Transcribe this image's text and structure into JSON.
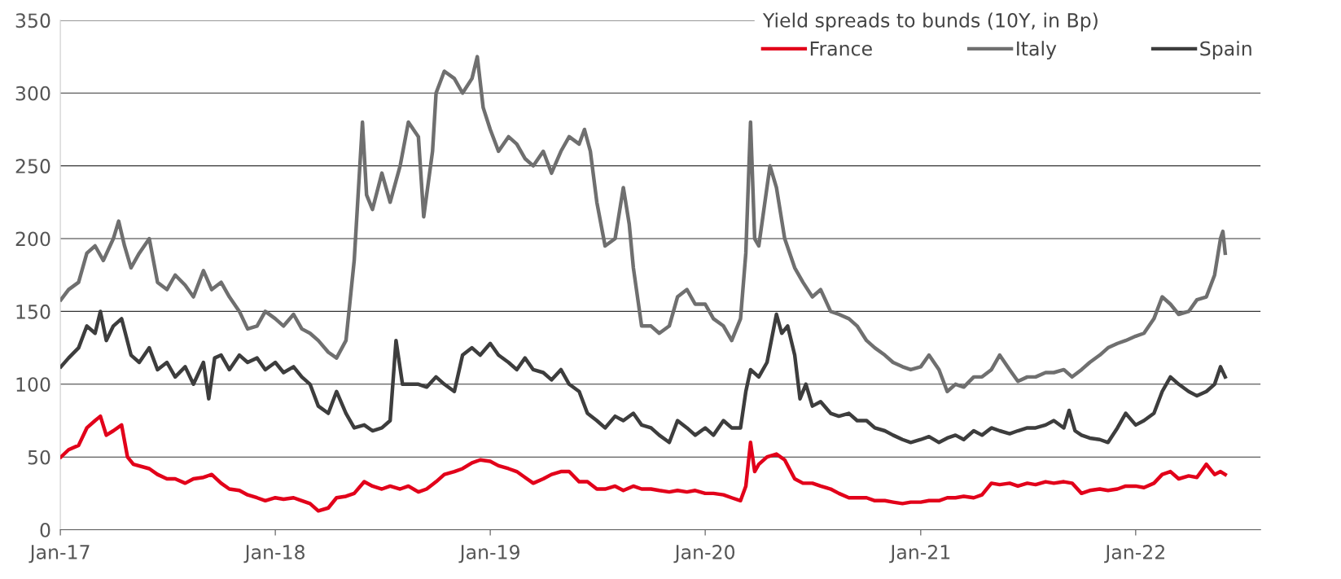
{
  "chart_data": {
    "type": "line",
    "legend_title": "Yield spreads to bunds (10Y, in Bp)",
    "legend": "top right",
    "grid": "y",
    "marker": "none",
    "line_style": "solid",
    "xlim": [
      "2017-01-01",
      "2022-08-01"
    ],
    "xticks": [
      {
        "value": "2017-01-01",
        "label": "Jan-17"
      },
      {
        "value": "2018-01-01",
        "label": "Jan-18"
      },
      {
        "value": "2019-01-01",
        "label": "Jan-19"
      },
      {
        "value": "2020-01-01",
        "label": "Jan-20"
      },
      {
        "value": "2021-01-01",
        "label": "Jan-21"
      },
      {
        "value": "2022-01-01",
        "label": "Jan-22"
      }
    ],
    "ylim": [
      0,
      350
    ],
    "yticks": [
      0,
      50,
      100,
      150,
      200,
      250,
      300,
      350
    ],
    "series": [
      {
        "name": "France",
        "color": "#e2001a",
        "x": [
          "2017-01-02",
          "2017-01-15",
          "2017-02-01",
          "2017-02-15",
          "2017-03-01",
          "2017-03-10",
          "2017-03-20",
          "2017-04-01",
          "2017-04-15",
          "2017-04-25",
          "2017-05-05",
          "2017-06-01",
          "2017-06-15",
          "2017-07-01",
          "2017-07-15",
          "2017-08-01",
          "2017-08-15",
          "2017-09-01",
          "2017-09-15",
          "2017-10-01",
          "2017-10-15",
          "2017-11-01",
          "2017-11-15",
          "2017-12-01",
          "2017-12-15",
          "2018-01-01",
          "2018-01-15",
          "2018-02-01",
          "2018-02-15",
          "2018-03-01",
          "2018-03-15",
          "2018-04-01",
          "2018-04-15",
          "2018-05-01",
          "2018-05-15",
          "2018-06-01",
          "2018-06-15",
          "2018-07-01",
          "2018-07-15",
          "2018-08-01",
          "2018-08-15",
          "2018-09-01",
          "2018-09-15",
          "2018-10-01",
          "2018-10-15",
          "2018-11-01",
          "2018-11-15",
          "2018-12-01",
          "2018-12-15",
          "2019-01-01",
          "2019-01-15",
          "2019-02-01",
          "2019-02-15",
          "2019-03-01",
          "2019-03-15",
          "2019-04-01",
          "2019-04-15",
          "2019-05-01",
          "2019-05-15",
          "2019-06-01",
          "2019-06-15",
          "2019-07-01",
          "2019-07-15",
          "2019-08-01",
          "2019-08-15",
          "2019-09-01",
          "2019-09-15",
          "2019-10-01",
          "2019-10-15",
          "2019-11-01",
          "2019-11-15",
          "2019-12-01",
          "2019-12-15",
          "2020-01-01",
          "2020-01-15",
          "2020-02-01",
          "2020-02-15",
          "2020-03-01",
          "2020-03-10",
          "2020-03-18",
          "2020-03-25",
          "2020-04-01",
          "2020-04-15",
          "2020-05-01",
          "2020-05-15",
          "2020-06-01",
          "2020-06-15",
          "2020-07-01",
          "2020-07-15",
          "2020-08-01",
          "2020-08-15",
          "2020-09-01",
          "2020-09-15",
          "2020-10-01",
          "2020-10-15",
          "2020-11-01",
          "2020-11-15",
          "2020-12-01",
          "2020-12-15",
          "2021-01-01",
          "2021-01-15",
          "2021-02-01",
          "2021-02-15",
          "2021-03-01",
          "2021-03-15",
          "2021-04-01",
          "2021-04-15",
          "2021-05-01",
          "2021-05-15",
          "2021-06-01",
          "2021-06-15",
          "2021-07-01",
          "2021-07-15",
          "2021-08-01",
          "2021-08-15",
          "2021-09-01",
          "2021-09-15",
          "2021-10-01",
          "2021-10-15",
          "2021-11-01",
          "2021-11-15",
          "2021-12-01",
          "2021-12-15",
          "2022-01-01",
          "2022-01-15",
          "2022-02-01",
          "2022-02-15",
          "2022-03-01",
          "2022-03-15",
          "2022-04-01",
          "2022-04-15",
          "2022-05-01",
          "2022-05-15",
          "2022-05-25",
          "2022-06-02"
        ],
        "values": [
          50,
          55,
          58,
          70,
          75,
          78,
          65,
          68,
          72,
          50,
          45,
          42,
          38,
          35,
          35,
          32,
          35,
          36,
          38,
          32,
          28,
          27,
          24,
          22,
          20,
          22,
          21,
          22,
          20,
          18,
          13,
          15,
          22,
          23,
          25,
          33,
          30,
          28,
          30,
          28,
          30,
          26,
          28,
          33,
          38,
          40,
          42,
          46,
          48,
          47,
          44,
          42,
          40,
          36,
          32,
          35,
          38,
          40,
          40,
          33,
          33,
          28,
          28,
          30,
          27,
          30,
          28,
          28,
          27,
          26,
          27,
          26,
          27,
          25,
          25,
          24,
          22,
          20,
          30,
          60,
          40,
          45,
          50,
          52,
          48,
          35,
          32,
          32,
          30,
          28,
          25,
          22,
          22,
          22,
          20,
          20,
          19,
          18,
          19,
          19,
          20,
          20,
          22,
          22,
          23,
          22,
          24,
          32,
          31,
          32,
          30,
          32,
          31,
          33,
          32,
          33,
          32,
          25,
          27,
          28,
          27,
          28,
          30,
          30,
          29,
          32,
          38,
          40,
          35,
          37,
          36,
          45,
          38,
          40,
          38
        ]
      },
      {
        "name": "Italy",
        "color": "#6f6f6f",
        "x": [
          "2017-01-02",
          "2017-01-15",
          "2017-02-01",
          "2017-02-15",
          "2017-03-01",
          "2017-03-15",
          "2017-04-01",
          "2017-04-10",
          "2017-04-20",
          "2017-05-01",
          "2017-05-15",
          "2017-06-01",
          "2017-06-15",
          "2017-07-01",
          "2017-07-15",
          "2017-08-01",
          "2017-08-15",
          "2017-09-01",
          "2017-09-15",
          "2017-10-01",
          "2017-10-15",
          "2017-11-01",
          "2017-11-15",
          "2017-12-01",
          "2017-12-15",
          "2018-01-01",
          "2018-01-15",
          "2018-02-01",
          "2018-02-15",
          "2018-03-01",
          "2018-03-15",
          "2018-04-01",
          "2018-04-15",
          "2018-05-01",
          "2018-05-15",
          "2018-05-29",
          "2018-06-05",
          "2018-06-15",
          "2018-07-01",
          "2018-07-15",
          "2018-08-01",
          "2018-08-15",
          "2018-09-01",
          "2018-09-10",
          "2018-09-25",
          "2018-10-01",
          "2018-10-15",
          "2018-11-01",
          "2018-11-15",
          "2018-12-01",
          "2018-12-10",
          "2018-12-20",
          "2019-01-01",
          "2019-01-15",
          "2019-02-01",
          "2019-02-15",
          "2019-03-01",
          "2019-03-15",
          "2019-04-01",
          "2019-04-15",
          "2019-05-01",
          "2019-05-15",
          "2019-06-01",
          "2019-06-10",
          "2019-06-20",
          "2019-07-01",
          "2019-07-15",
          "2019-08-01",
          "2019-08-15",
          "2019-08-25",
          "2019-09-01",
          "2019-09-15",
          "2019-10-01",
          "2019-10-15",
          "2019-11-01",
          "2019-11-15",
          "2019-12-01",
          "2019-12-15",
          "2020-01-01",
          "2020-01-15",
          "2020-02-01",
          "2020-02-15",
          "2020-03-01",
          "2020-03-10",
          "2020-03-18",
          "2020-03-25",
          "2020-04-01",
          "2020-04-20",
          "2020-05-01",
          "2020-05-15",
          "2020-06-01",
          "2020-06-15",
          "2020-07-01",
          "2020-07-15",
          "2020-08-01",
          "2020-08-15",
          "2020-09-01",
          "2020-09-15",
          "2020-10-01",
          "2020-10-15",
          "2020-11-01",
          "2020-11-15",
          "2020-12-01",
          "2020-12-15",
          "2021-01-01",
          "2021-01-15",
          "2021-02-01",
          "2021-02-15",
          "2021-03-01",
          "2021-03-15",
          "2021-04-01",
          "2021-04-15",
          "2021-05-01",
          "2021-05-15",
          "2021-06-01",
          "2021-06-15",
          "2021-07-01",
          "2021-07-15",
          "2021-08-01",
          "2021-08-15",
          "2021-09-01",
          "2021-09-15",
          "2021-10-01",
          "2021-10-15",
          "2021-11-01",
          "2021-11-15",
          "2021-12-01",
          "2021-12-15",
          "2022-01-01",
          "2022-01-15",
          "2022-02-01",
          "2022-02-15",
          "2022-03-01",
          "2022-03-15",
          "2022-04-01",
          "2022-04-15",
          "2022-05-01",
          "2022-05-15",
          "2022-05-25",
          "2022-05-29",
          "2022-06-02"
        ],
        "values": [
          158,
          165,
          170,
          190,
          195,
          185,
          200,
          212,
          195,
          180,
          190,
          200,
          170,
          165,
          175,
          168,
          160,
          178,
          165,
          170,
          160,
          150,
          138,
          140,
          150,
          145,
          140,
          148,
          138,
          135,
          130,
          122,
          118,
          130,
          185,
          280,
          230,
          220,
          245,
          225,
          250,
          280,
          270,
          215,
          260,
          300,
          315,
          310,
          300,
          310,
          325,
          290,
          275,
          260,
          270,
          265,
          255,
          250,
          260,
          245,
          260,
          270,
          265,
          275,
          260,
          225,
          195,
          200,
          235,
          210,
          180,
          140,
          140,
          135,
          140,
          160,
          165,
          155,
          155,
          145,
          140,
          130,
          145,
          190,
          280,
          200,
          195,
          250,
          235,
          200,
          180,
          170,
          160,
          165,
          150,
          148,
          145,
          140,
          130,
          125,
          120,
          115,
          112,
          110,
          112,
          120,
          110,
          95,
          100,
          98,
          105,
          105,
          110,
          120,
          110,
          102,
          105,
          105,
          108,
          108,
          110,
          105,
          110,
          115,
          120,
          125,
          128,
          130,
          133,
          135,
          145,
          160,
          155,
          148,
          150,
          158,
          160,
          175,
          200,
          205,
          190
        ]
      },
      {
        "name": "Spain",
        "color": "#3d3d3d",
        "x": [
          "2017-01-02",
          "2017-01-15",
          "2017-02-01",
          "2017-02-15",
          "2017-03-01",
          "2017-03-10",
          "2017-03-20",
          "2017-04-01",
          "2017-04-15",
          "2017-05-01",
          "2017-05-15",
          "2017-06-01",
          "2017-06-15",
          "2017-07-01",
          "2017-07-15",
          "2017-08-01",
          "2017-08-15",
          "2017-09-01",
          "2017-09-10",
          "2017-09-20",
          "2017-10-01",
          "2017-10-15",
          "2017-11-01",
          "2017-11-15",
          "2017-12-01",
          "2017-12-15",
          "2018-01-01",
          "2018-01-15",
          "2018-02-01",
          "2018-02-15",
          "2018-03-01",
          "2018-03-15",
          "2018-04-01",
          "2018-04-15",
          "2018-05-01",
          "2018-05-15",
          "2018-06-01",
          "2018-06-15",
          "2018-07-01",
          "2018-07-15",
          "2018-07-25",
          "2018-08-05",
          "2018-09-01",
          "2018-09-15",
          "2018-10-01",
          "2018-10-15",
          "2018-11-01",
          "2018-11-15",
          "2018-12-01",
          "2018-12-15",
          "2019-01-01",
          "2019-01-15",
          "2019-02-01",
          "2019-02-15",
          "2019-03-01",
          "2019-03-15",
          "2019-04-01",
          "2019-04-15",
          "2019-05-01",
          "2019-05-15",
          "2019-06-01",
          "2019-06-15",
          "2019-07-01",
          "2019-07-15",
          "2019-08-01",
          "2019-08-15",
          "2019-09-01",
          "2019-09-15",
          "2019-10-01",
          "2019-10-15",
          "2019-11-01",
          "2019-11-15",
          "2019-12-01",
          "2019-12-15",
          "2020-01-01",
          "2020-01-15",
          "2020-02-01",
          "2020-02-15",
          "2020-03-01",
          "2020-03-10",
          "2020-03-18",
          "2020-04-01",
          "2020-04-15",
          "2020-05-01",
          "2020-05-10",
          "2020-05-20",
          "2020-06-01",
          "2020-06-10",
          "2020-06-20",
          "2020-07-01",
          "2020-07-15",
          "2020-08-01",
          "2020-08-15",
          "2020-09-01",
          "2020-09-15",
          "2020-10-01",
          "2020-10-15",
          "2020-11-01",
          "2020-11-15",
          "2020-12-01",
          "2020-12-15",
          "2021-01-01",
          "2021-01-15",
          "2021-02-01",
          "2021-02-15",
          "2021-03-01",
          "2021-03-15",
          "2021-04-01",
          "2021-04-15",
          "2021-05-01",
          "2021-05-15",
          "2021-06-01",
          "2021-06-15",
          "2021-07-01",
          "2021-07-15",
          "2021-08-01",
          "2021-08-15",
          "2021-09-01",
          "2021-09-10",
          "2021-09-20",
          "2021-10-01",
          "2021-10-15",
          "2021-11-01",
          "2021-11-15",
          "2021-12-01",
          "2021-12-15",
          "2022-01-01",
          "2022-01-15",
          "2022-02-01",
          "2022-02-15",
          "2022-03-01",
          "2022-03-15",
          "2022-04-01",
          "2022-04-15",
          "2022-05-01",
          "2022-05-15",
          "2022-05-25",
          "2022-06-02"
        ],
        "values": [
          112,
          118,
          125,
          140,
          135,
          150,
          130,
          140,
          145,
          120,
          115,
          125,
          110,
          115,
          105,
          112,
          100,
          115,
          90,
          118,
          120,
          110,
          120,
          115,
          118,
          110,
          115,
          108,
          112,
          105,
          100,
          85,
          80,
          95,
          80,
          70,
          72,
          68,
          70,
          75,
          130,
          100,
          100,
          98,
          105,
          100,
          95,
          120,
          125,
          120,
          128,
          120,
          115,
          110,
          118,
          110,
          108,
          103,
          110,
          100,
          95,
          80,
          75,
          70,
          78,
          75,
          80,
          72,
          70,
          65,
          60,
          75,
          70,
          65,
          70,
          65,
          75,
          70,
          70,
          95,
          110,
          105,
          115,
          148,
          135,
          140,
          120,
          90,
          100,
          85,
          88,
          80,
          78,
          80,
          75,
          75,
          70,
          68,
          65,
          62,
          60,
          62,
          64,
          60,
          63,
          65,
          62,
          68,
          65,
          70,
          68,
          66,
          68,
          70,
          70,
          72,
          75,
          70,
          82,
          68,
          65,
          63,
          62,
          60,
          70,
          80,
          72,
          75,
          80,
          95,
          105,
          100,
          95,
          92,
          95,
          100,
          112,
          105
        ]
      }
    ]
  }
}
